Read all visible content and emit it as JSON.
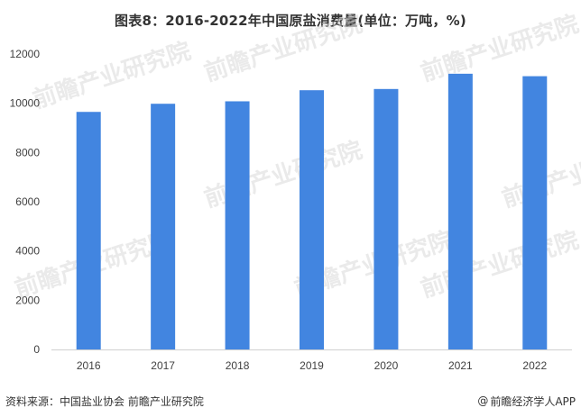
{
  "chart_data": {
    "type": "bar",
    "title": "图表8：2016-2022年中国原盐消费量(单位：万吨，%)",
    "xlabel": "",
    "ylabel": "",
    "categories": [
      "2016",
      "2017",
      "2018",
      "2019",
      "2020",
      "2021",
      "2022"
    ],
    "values": [
      9650,
      9980,
      10080,
      10530,
      10580,
      11200,
      11100
    ],
    "ylim": [
      0,
      12000
    ],
    "yticks": [
      0,
      2000,
      4000,
      6000,
      8000,
      10000,
      12000
    ],
    "ytick_labels": [
      "0",
      "2000",
      "4000",
      "6000",
      "8000",
      "10000",
      "12000"
    ],
    "grid": false,
    "legend": "none",
    "bar_color": "#4285e0"
  },
  "footer": {
    "source": "资料来源：中国盐业协会 前瞻产业研究院",
    "credit_symbol": "@",
    "credit": "前瞻经济学人APP"
  },
  "watermark": {
    "text": "前瞻产业研究院"
  }
}
